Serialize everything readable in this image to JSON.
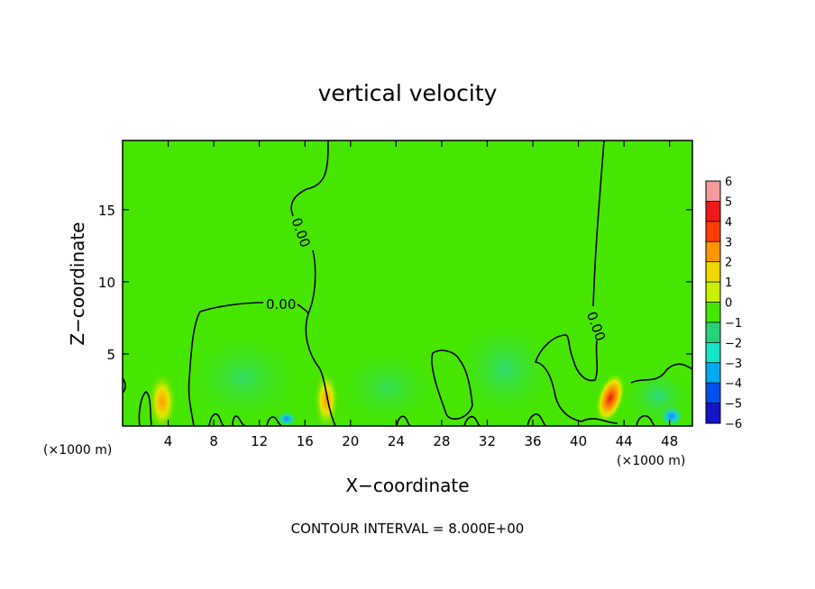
{
  "chart_data": {
    "type": "heatmap",
    "title": "vertical velocity",
    "xlabel": "X−coordinate",
    "ylabel": "Z−coordinate",
    "x_unit_label_left": "(×1000 m)",
    "x_unit_label_right": "(×1000 m)",
    "xlim": [
      0,
      50
    ],
    "ylim": [
      0,
      19.8
    ],
    "x_ticks": [
      4,
      8,
      12,
      16,
      20,
      24,
      28,
      32,
      36,
      40,
      44,
      48
    ],
    "x_tick_labels": [
      "4",
      "8",
      "12",
      "16",
      "20",
      "24",
      "28",
      "32",
      "36",
      "40",
      "44",
      "48"
    ],
    "y_ticks": [
      5,
      10,
      15
    ],
    "y_tick_labels": [
      "5",
      "10",
      "15"
    ],
    "colorbar": {
      "levels": [
        6,
        5,
        4,
        3,
        2,
        1,
        0,
        -1,
        -2,
        -3,
        -4,
        -5,
        -6
      ],
      "labels": [
        "6",
        "5",
        "4",
        "3",
        "2",
        "1",
        "0",
        "−1",
        "−2",
        "−3",
        "−4",
        "−5",
        "−6"
      ],
      "colors": [
        "#f49a9a",
        "#f01818",
        "#ff3c00",
        "#ff9600",
        "#f0d800",
        "#c8f000",
        "#46e600",
        "#28d278",
        "#14e6c8",
        "#00aaf0",
        "#0050f0",
        "#1414c8",
        "#5a14b4"
      ]
    },
    "contour_labels": [
      {
        "text": "0.00",
        "x": 13.9,
        "y": 8.4
      },
      {
        "text": "0.00",
        "x": 15.6,
        "y": 13.4
      },
      {
        "text": "0.00",
        "x": 41.5,
        "y": 6.9
      }
    ],
    "hotspots": [
      {
        "x": 3.6,
        "z": 1.7,
        "value": 2.5
      },
      {
        "x": 17.8,
        "z": 1.8,
        "value": 2.5
      },
      {
        "x": 42.6,
        "z": 1.9,
        "value": 4.5
      },
      {
        "x": 48.0,
        "z": 0.7,
        "value": -2.5
      },
      {
        "x": 14.5,
        "z": 0.5,
        "value": -1.5
      }
    ],
    "footer": "CONTOUR INTERVAL = 8.000E+00",
    "grid": false
  }
}
